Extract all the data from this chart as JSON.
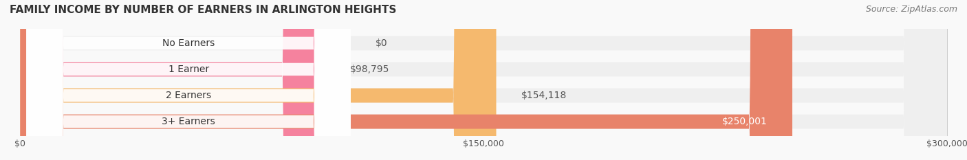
{
  "title": "FAMILY INCOME BY NUMBER OF EARNERS IN ARLINGTON HEIGHTS",
  "source": "Source: ZipAtlas.com",
  "categories": [
    "No Earners",
    "1 Earner",
    "2 Earners",
    "3+ Earners"
  ],
  "values": [
    0,
    98795,
    154118,
    250001
  ],
  "labels": [
    "$0",
    "$98,795",
    "$154,118",
    "$250,001"
  ],
  "bar_colors": [
    "#aab4e0",
    "#f5829e",
    "#f5b96e",
    "#e8836a"
  ],
  "bar_bg_color": "#efefef",
  "label_colors": [
    "#555555",
    "#555555",
    "#555555",
    "#ffffff"
  ],
  "xmax": 300000,
  "xticks": [
    0,
    150000,
    300000
  ],
  "xticklabels": [
    "$0",
    "$150,000",
    "$300,000"
  ],
  "title_fontsize": 11,
  "source_fontsize": 9,
  "label_fontsize": 10,
  "category_fontsize": 10,
  "background_color": "#f9f9f9",
  "bar_background_color": "#eeeeee"
}
